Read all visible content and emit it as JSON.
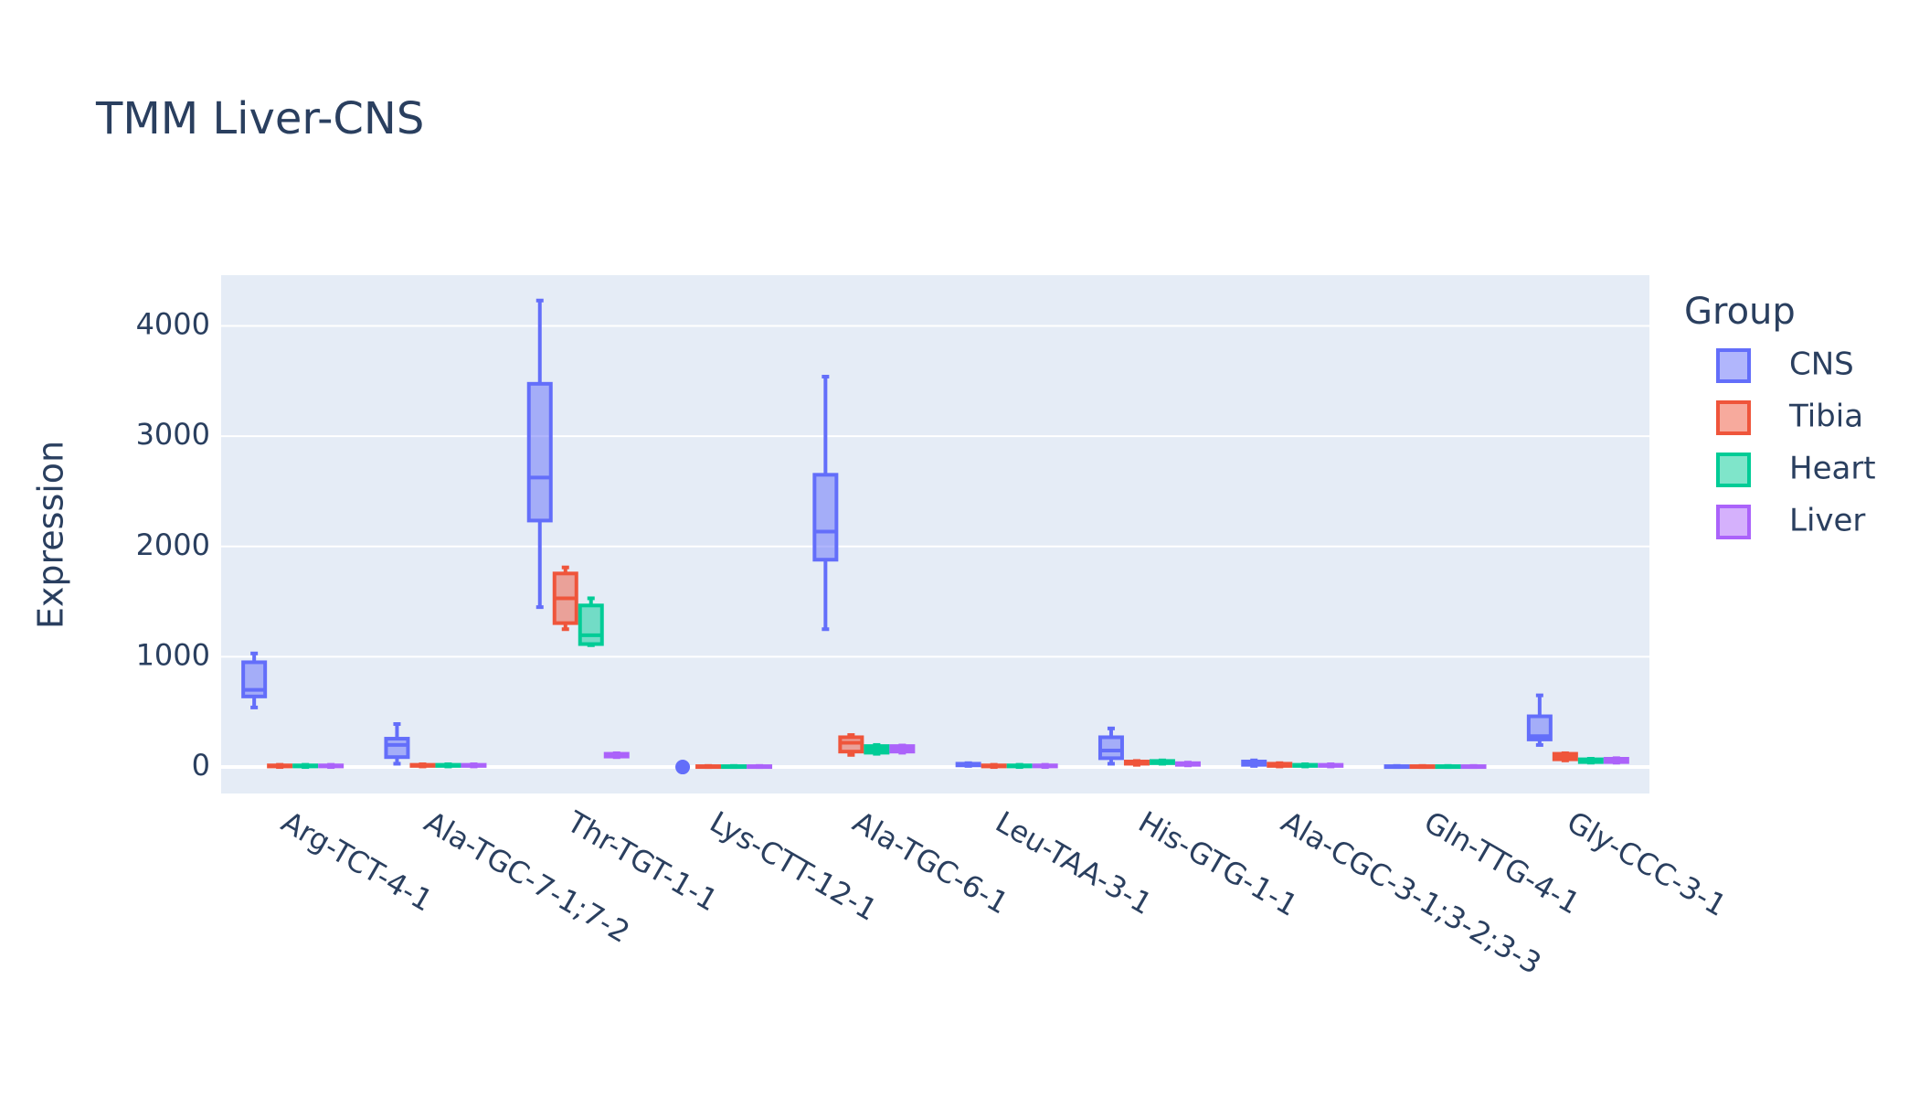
{
  "chart_data": {
    "type": "box",
    "title": "TMM Liver-CNS",
    "y_label": "Expression",
    "legend_title": "Group",
    "categories": [
      "Arg-TCT-4-1",
      "Ala-TGC-7-1;7-2",
      "Thr-TGT-1-1",
      "Lys-CTT-12-1",
      "Ala-TGC-6-1",
      "Leu-TAA-3-1",
      "His-GTG-1-1",
      "Ala-CGC-3-1;3-2;3-3",
      "Gln-TTG-4-1",
      "Gly-CCC-3-1"
    ],
    "series": [
      {
        "name": "CNS",
        "color": "#636efa",
        "values": [
          [
            540,
            640,
            700,
            950,
            1030
          ],
          [
            30,
            90,
            200,
            257,
            390
          ],
          [
            1450,
            2235,
            2625,
            3475,
            4230
          ],
          [
            0,
            0,
            0,
            0,
            0
          ],
          [
            1250,
            1880,
            2135,
            2650,
            3540
          ],
          [
            10,
            15,
            20,
            30,
            35
          ],
          [
            30,
            80,
            150,
            270,
            350
          ],
          [
            10,
            20,
            30,
            50,
            60
          ],
          [
            0,
            2,
            5,
            8,
            10
          ],
          [
            200,
            250,
            280,
            460,
            650
          ]
        ]
      },
      {
        "name": "Tibia",
        "color": "#ef553b",
        "values": [
          [
            0,
            5,
            10,
            15,
            20
          ],
          [
            5,
            10,
            15,
            20,
            25
          ],
          [
            1250,
            1305,
            1530,
            1755,
            1810
          ],
          [
            0,
            2,
            5,
            8,
            10
          ],
          [
            110,
            140,
            220,
            270,
            290
          ],
          [
            0,
            5,
            10,
            15,
            20
          ],
          [
            20,
            30,
            40,
            50,
            55
          ],
          [
            5,
            10,
            20,
            30,
            35
          ],
          [
            0,
            2,
            5,
            8,
            10
          ],
          [
            60,
            70,
            100,
            120,
            125
          ]
        ]
      },
      {
        "name": "Heart",
        "color": "#00cc96",
        "values": [
          [
            0,
            5,
            10,
            15,
            20
          ],
          [
            5,
            10,
            15,
            20,
            25
          ],
          [
            1105,
            1115,
            1195,
            1465,
            1530
          ],
          [
            0,
            2,
            5,
            8,
            10
          ],
          [
            120,
            130,
            160,
            190,
            200
          ],
          [
            0,
            5,
            10,
            15,
            20
          ],
          [
            30,
            35,
            45,
            55,
            60
          ],
          [
            5,
            10,
            15,
            20,
            25
          ],
          [
            0,
            2,
            5,
            8,
            10
          ],
          [
            40,
            45,
            55,
            70,
            75
          ]
        ]
      },
      {
        "name": "Liver",
        "color": "#ab63fa",
        "values": [
          [
            0,
            5,
            10,
            15,
            20
          ],
          [
            5,
            10,
            15,
            20,
            25
          ],
          [
            90,
            95,
            110,
            120,
            125
          ],
          [
            0,
            2,
            5,
            8,
            10
          ],
          [
            130,
            140,
            170,
            190,
            195
          ],
          [
            0,
            5,
            10,
            15,
            20
          ],
          [
            15,
            20,
            25,
            35,
            40
          ],
          [
            5,
            10,
            15,
            20,
            25
          ],
          [
            0,
            2,
            5,
            8,
            10
          ],
          [
            40,
            45,
            60,
            75,
            80
          ]
        ]
      }
    ],
    "ylim": [
      -240,
      4460
    ],
    "yticks": [
      0,
      1000,
      2000,
      3000,
      4000
    ],
    "grid": true
  }
}
